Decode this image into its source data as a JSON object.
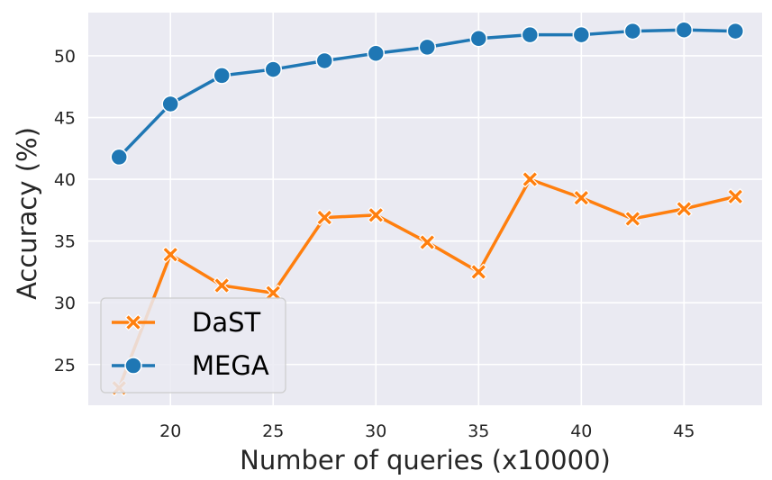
{
  "chart_data": {
    "type": "line",
    "title": "",
    "xlabel": "Number of queries (x10000)",
    "ylabel": "Accuracy (%)",
    "xlim": [
      16.0,
      48.8
    ],
    "ylim": [
      21.7,
      53.5
    ],
    "xticks": [
      20,
      25,
      30,
      35,
      40,
      45
    ],
    "yticks": [
      25,
      30,
      35,
      40,
      45,
      50
    ],
    "grid": true,
    "legend_position": "lower-left",
    "series": [
      {
        "name": "DaST",
        "color": "#ff7f0e",
        "marker": "x",
        "x": [
          17.5,
          20,
          22.5,
          25,
          27.5,
          30,
          32.5,
          35,
          37.5,
          40,
          42.5,
          45,
          47.5
        ],
        "y": [
          23.1,
          33.9,
          31.4,
          30.8,
          36.9,
          37.1,
          34.9,
          32.5,
          40.0,
          38.5,
          36.8,
          37.6,
          38.6
        ]
      },
      {
        "name": "MEGA",
        "color": "#1f77b4",
        "marker": "o",
        "x": [
          17.5,
          20,
          22.5,
          25,
          27.5,
          30,
          32.5,
          35,
          37.5,
          40,
          42.5,
          45,
          47.5
        ],
        "y": [
          41.8,
          46.1,
          48.4,
          48.9,
          49.6,
          50.2,
          50.7,
          51.4,
          51.7,
          51.7,
          52.0,
          52.1,
          52.0
        ]
      }
    ]
  }
}
